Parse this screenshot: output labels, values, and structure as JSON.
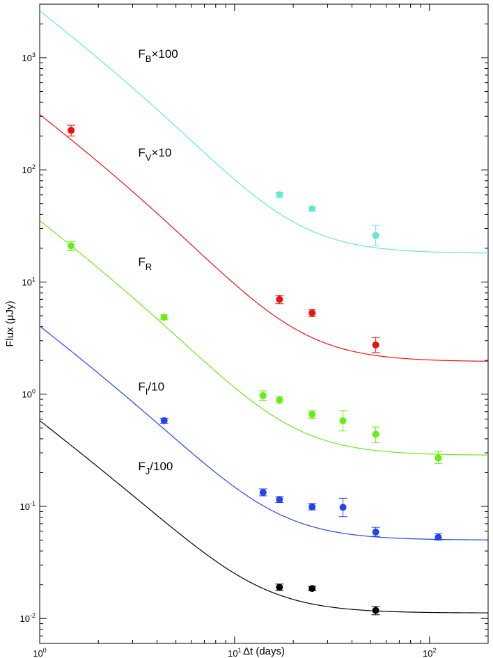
{
  "chart_data": {
    "type": "scatter",
    "title": "",
    "xlabel": "Δt (days)",
    "ylabel": "Flux (μJy)",
    "xscale": "log",
    "yscale": "log",
    "xlim": [
      1,
      200
    ],
    "ylim": [
      0.006,
      3000
    ],
    "x_tick_labels": [
      {
        "value": 1,
        "base": "10",
        "exp": "0"
      },
      {
        "value": 10,
        "base": "10",
        "exp": "1"
      },
      {
        "value": 100,
        "base": "10",
        "exp": "2"
      }
    ],
    "y_tick_labels": [
      {
        "value": 0.01,
        "base": "10",
        "exp": "-2"
      },
      {
        "value": 0.1,
        "base": "10",
        "exp": "-1"
      },
      {
        "value": 1,
        "base": "10",
        "exp": "0"
      },
      {
        "value": 10,
        "base": "10",
        "exp": "1"
      },
      {
        "value": 100,
        "base": "10",
        "exp": "2"
      },
      {
        "value": 1000,
        "base": "10",
        "exp": "3"
      }
    ],
    "series": [
      {
        "name": "B",
        "label": {
          "base": "F",
          "sub": "B",
          "suffix": "×100",
          "at": [
            3.2,
            1000
          ]
        },
        "color": "#66e8cc",
        "points": [
          {
            "x": 17.0,
            "y": 60,
            "lo": 57,
            "hi": 63
          },
          {
            "x": 25.0,
            "y": 45,
            "lo": 43,
            "hi": 47
          },
          {
            "x": 53.0,
            "y": 26,
            "lo": 21,
            "hi": 32
          }
        ],
        "model": {
          "x0": 1,
          "y0": 2600,
          "alpha1": 1.33,
          "alpha2": 2.1,
          "xb": 5,
          "host": 18
        }
      },
      {
        "name": "V",
        "label": {
          "base": "F",
          "sub": "V",
          "suffix": "×10",
          "at": [
            3.2,
            132
          ]
        },
        "color": "#ee1111",
        "points": [
          {
            "x": 1.45,
            "y": 225,
            "lo": 200,
            "hi": 250
          },
          {
            "x": 17.0,
            "y": 7.0,
            "lo": 6.4,
            "hi": 7.6
          },
          {
            "x": 25.0,
            "y": 5.3,
            "lo": 4.9,
            "hi": 5.7
          },
          {
            "x": 53.0,
            "y": 2.75,
            "lo": 2.35,
            "hi": 3.2
          }
        ],
        "model": {
          "x0": 1,
          "y0": 310,
          "alpha1": 1.33,
          "alpha2": 2.1,
          "xb": 5,
          "host": 1.95
        }
      },
      {
        "name": "R",
        "label": {
          "base": "F",
          "sub": "R",
          "suffix": "",
          "at": [
            3.2,
            14
          ]
        },
        "color": "#66ee11",
        "points": [
          {
            "x": 1.45,
            "y": 21,
            "lo": 19,
            "hi": 23
          },
          {
            "x": 4.35,
            "y": 4.85,
            "lo": 4.6,
            "hi": 5.1
          },
          {
            "x": 14.0,
            "y": 0.97,
            "lo": 0.88,
            "hi": 1.07
          },
          {
            "x": 17.0,
            "y": 0.89,
            "lo": 0.83,
            "hi": 0.95
          },
          {
            "x": 25.0,
            "y": 0.66,
            "lo": 0.61,
            "hi": 0.71
          },
          {
            "x": 36.0,
            "y": 0.58,
            "lo": 0.47,
            "hi": 0.71
          },
          {
            "x": 53.0,
            "y": 0.44,
            "lo": 0.37,
            "hi": 0.51
          },
          {
            "x": 111.0,
            "y": 0.27,
            "lo": 0.24,
            "hi": 0.31
          }
        ],
        "model": {
          "x0": 1,
          "y0": 35,
          "alpha1": 1.33,
          "alpha2": 2.1,
          "xb": 5,
          "host": 0.285
        }
      },
      {
        "name": "I",
        "label": {
          "base": "F",
          "sub": "I",
          "suffix": "/10",
          "at": [
            3.2,
            1.08
          ]
        },
        "color": "#2244ee",
        "points": [
          {
            "x": 4.35,
            "y": 0.58,
            "lo": 0.55,
            "hi": 0.61
          },
          {
            "x": 14.0,
            "y": 0.133,
            "lo": 0.124,
            "hi": 0.143
          },
          {
            "x": 17.0,
            "y": 0.115,
            "lo": 0.108,
            "hi": 0.122
          },
          {
            "x": 25.0,
            "y": 0.099,
            "lo": 0.093,
            "hi": 0.106
          },
          {
            "x": 36.0,
            "y": 0.098,
            "lo": 0.081,
            "hi": 0.118
          },
          {
            "x": 53.0,
            "y": 0.059,
            "lo": 0.054,
            "hi": 0.065
          },
          {
            "x": 111.0,
            "y": 0.053,
            "lo": 0.05,
            "hi": 0.057
          }
        ],
        "model": {
          "x0": 1,
          "y0": 4.0,
          "alpha1": 1.33,
          "alpha2": 2.1,
          "xb": 5,
          "host": 0.05
        }
      },
      {
        "name": "J",
        "label": {
          "base": "F",
          "sub": "J",
          "suffix": "/100",
          "at": [
            3.2,
            0.21
          ]
        },
        "color": "#000000",
        "points": [
          {
            "x": 17.0,
            "y": 0.019,
            "lo": 0.0178,
            "hi": 0.0203
          },
          {
            "x": 25.0,
            "y": 0.0185,
            "lo": 0.0177,
            "hi": 0.0194
          },
          {
            "x": 53.0,
            "y": 0.0118,
            "lo": 0.0108,
            "hi": 0.0128
          }
        ],
        "model": {
          "x0": 1,
          "y0": 0.57,
          "alpha1": 1.33,
          "alpha2": 2.1,
          "xb": 5,
          "host": 0.0112
        }
      }
    ]
  }
}
